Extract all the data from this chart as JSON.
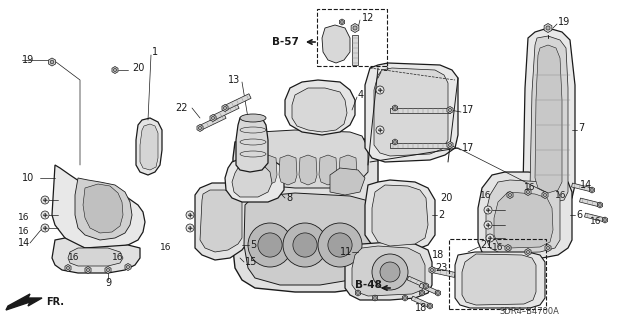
{
  "bg_color": "#ffffff",
  "diagram_code": "SDR4–B4700A",
  "b57_label": "B-57",
  "b48_label": "B-48",
  "fr_label": "FR.",
  "lc": "#1a1a1a",
  "gray1": "#888888",
  "gray2": "#aaaaaa",
  "gray3": "#cccccc"
}
